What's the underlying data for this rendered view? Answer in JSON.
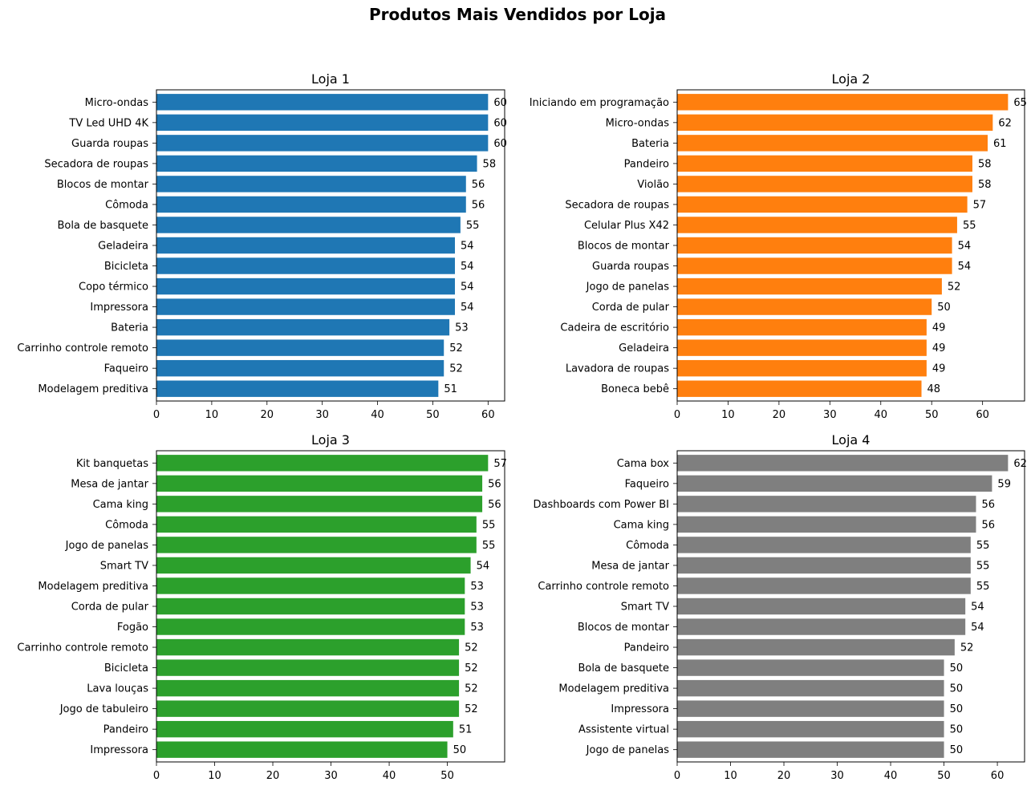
{
  "figure_title": "Produtos Mais Vendidos por Loja",
  "chart_data": [
    {
      "type": "bar",
      "orientation": "horizontal",
      "title": "Loja 1",
      "color": "#1f77b4",
      "xlim": [
        0,
        63
      ],
      "xticks": [
        0,
        10,
        20,
        30,
        40,
        50,
        60
      ],
      "categories": [
        "Micro-ondas",
        "TV Led UHD 4K",
        "Guarda roupas",
        "Secadora de roupas",
        "Blocos de montar",
        "Cômoda",
        "Bola de basquete",
        "Geladeira",
        "Bicicleta",
        "Copo térmico",
        "Impressora",
        "Bateria",
        "Carrinho controle remoto",
        "Faqueiro",
        "Modelagem preditiva"
      ],
      "values": [
        60,
        60,
        60,
        58,
        56,
        56,
        55,
        54,
        54,
        54,
        54,
        53,
        52,
        52,
        51
      ]
    },
    {
      "type": "bar",
      "orientation": "horizontal",
      "title": "Loja 2",
      "color": "#ff7f0e",
      "xlim": [
        0,
        68.25
      ],
      "xticks": [
        0,
        10,
        20,
        30,
        40,
        50,
        60
      ],
      "categories": [
        "Iniciando em programação",
        "Micro-ondas",
        "Bateria",
        "Pandeiro",
        "Violão",
        "Secadora de roupas",
        "Celular Plus X42",
        "Blocos de montar",
        "Guarda roupas",
        "Jogo de panelas",
        "Corda de pular",
        "Cadeira de escritório",
        "Geladeira",
        "Lavadora de roupas",
        "Boneca bebê"
      ],
      "values": [
        65,
        62,
        61,
        58,
        58,
        57,
        55,
        54,
        54,
        52,
        50,
        49,
        49,
        49,
        48
      ]
    },
    {
      "type": "bar",
      "orientation": "horizontal",
      "title": "Loja 3",
      "color": "#2ca02c",
      "xlim": [
        0,
        59.85
      ],
      "xticks": [
        0,
        10,
        20,
        30,
        40,
        50
      ],
      "categories": [
        "Kit banquetas",
        "Mesa de jantar",
        "Cama king",
        "Cômoda",
        "Jogo de panelas",
        "Smart TV",
        "Modelagem preditiva",
        "Corda de pular",
        "Fogão",
        "Carrinho controle remoto",
        "Bicicleta",
        "Lava louças",
        "Jogo de tabuleiro",
        "Pandeiro",
        "Impressora"
      ],
      "values": [
        57,
        56,
        56,
        55,
        55,
        54,
        53,
        53,
        53,
        52,
        52,
        52,
        52,
        51,
        50
      ]
    },
    {
      "type": "bar",
      "orientation": "horizontal",
      "title": "Loja 4",
      "color": "#7f7f7f",
      "xlim": [
        0,
        65.1
      ],
      "xticks": [
        0,
        10,
        20,
        30,
        40,
        50,
        60
      ],
      "categories": [
        "Cama box",
        "Faqueiro",
        "Dashboards com Power BI",
        "Cama king",
        "Cômoda",
        "Mesa de jantar",
        "Carrinho controle remoto",
        "Smart TV",
        "Blocos de montar",
        "Pandeiro",
        "Bola de basquete",
        "Modelagem preditiva",
        "Impressora",
        "Assistente virtual",
        "Jogo de panelas"
      ],
      "values": [
        62,
        59,
        56,
        56,
        55,
        55,
        55,
        54,
        54,
        52,
        50,
        50,
        50,
        50,
        50
      ]
    }
  ]
}
